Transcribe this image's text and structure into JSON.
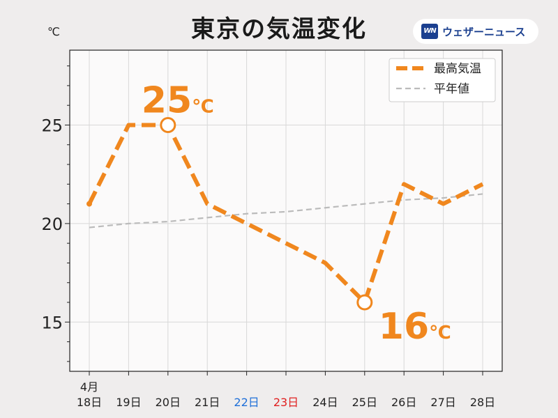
{
  "header": {
    "title": "東京の気温変化",
    "logo_mark": "WN",
    "logo_text": "ウェザーニュース",
    "unit": "℃"
  },
  "colors": {
    "series_max": "#f0871e",
    "series_normal": "#bbbbbb",
    "sunday": "#1e6fd8",
    "holiday": "#e02020",
    "grid": "#d8d8d8",
    "plot_bg": "#fbfafa"
  },
  "chart_data": {
    "type": "line",
    "title": "東京の気温変化",
    "ylabel": "℃",
    "ylim": [
      12.5,
      28.8
    ],
    "yticks": [
      15,
      20,
      25
    ],
    "grid": true,
    "legend_position": "top-right",
    "x": [
      "18日",
      "19日",
      "20日",
      "21日",
      "22日",
      "23日",
      "24日",
      "25日",
      "26日",
      "27日",
      "28日"
    ],
    "x_month_label": "4月",
    "x_label_colors": {
      "22日": "#1e6fd8",
      "23日": "#e02020"
    },
    "series": [
      {
        "name": "最高気温",
        "values": [
          21,
          25,
          25,
          21,
          20,
          19,
          18,
          16,
          22,
          21,
          22
        ],
        "style": "dashed-thick",
        "color": "#f0871e"
      },
      {
        "name": "平年値",
        "values": [
          19.8,
          20.0,
          20.1,
          20.3,
          20.5,
          20.6,
          20.8,
          21.0,
          21.2,
          21.3,
          21.5
        ],
        "style": "dashed-thin",
        "color": "#bbbbbb"
      }
    ],
    "annotations": [
      {
        "index": 2,
        "value": 25,
        "number": "25",
        "unit": "℃",
        "position": "above"
      },
      {
        "index": 7,
        "value": 16,
        "number": "16",
        "unit": "℃",
        "position": "below-right"
      }
    ]
  }
}
